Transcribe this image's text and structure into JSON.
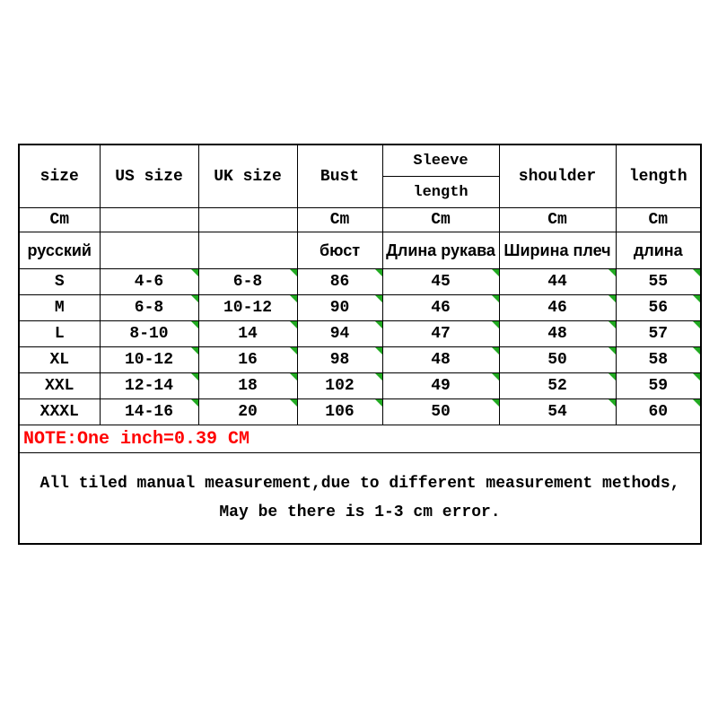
{
  "table": {
    "headers": {
      "size": "size",
      "us_size": "US size",
      "uk_size": "UK size",
      "bust": "Bust",
      "sleeve_top": "Sleeve",
      "sleeve_bottom": "length",
      "shoulder": "shoulder",
      "length": "length"
    },
    "unit_row": {
      "c1": "Cm",
      "c2": "",
      "c3": "",
      "c4": "Cm",
      "c5": "Cm",
      "c6": "Cm",
      "c7": "Cm"
    },
    "ru_row": {
      "c1": "русский",
      "c2": "",
      "c3": "",
      "c4": "бюст",
      "c5": "Длина рукава",
      "c6": "Ширина плеч",
      "c7": "длина"
    },
    "rows": [
      {
        "size": "S",
        "us": "4-6",
        "uk": "6-8",
        "bust": "86",
        "sleeve": "45",
        "shoulder": "44",
        "length": "55"
      },
      {
        "size": "M",
        "us": "6-8",
        "uk": "10-12",
        "bust": "90",
        "sleeve": "46",
        "shoulder": "46",
        "length": "56"
      },
      {
        "size": "L",
        "us": "8-10",
        "uk": "14",
        "bust": "94",
        "sleeve": "47",
        "shoulder": "48",
        "length": "57"
      },
      {
        "size": "XL",
        "us": "10-12",
        "uk": "16",
        "bust": "98",
        "sleeve": "48",
        "shoulder": "50",
        "length": "58"
      },
      {
        "size": "XXL",
        "us": "12-14",
        "uk": "18",
        "bust": "102",
        "sleeve": "49",
        "shoulder": "52",
        "length": "59"
      },
      {
        "size": "XXXL",
        "us": "14-16",
        "uk": "20",
        "bust": "106",
        "sleeve": "50",
        "shoulder": "54",
        "length": "60"
      }
    ],
    "note": "NOTE:One inch=0.39 CM",
    "footer": "All tiled manual measurement,due to different measurement methods, May be there is 1-3 cm error.",
    "colors": {
      "border": "#000000",
      "note_text": "#ff0000",
      "tick": "#22aa22",
      "background": "#ffffff"
    },
    "font_family": "Courier New",
    "font_weight": "bold"
  }
}
